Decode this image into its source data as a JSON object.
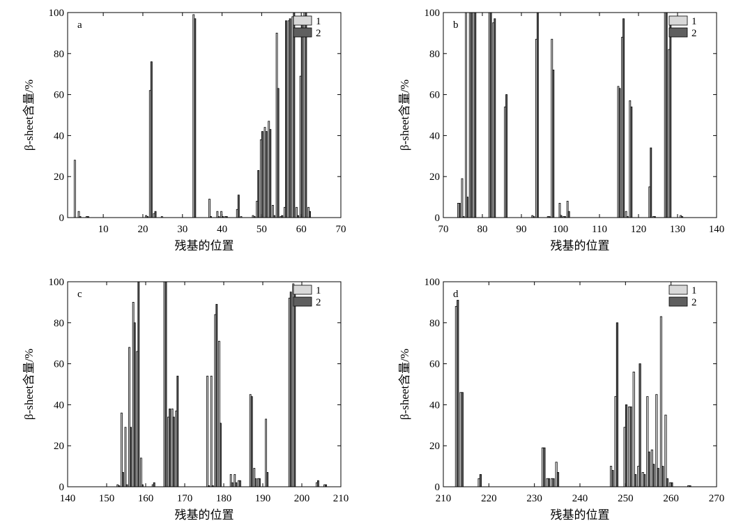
{
  "colors": {
    "series1": "#d9d9d9",
    "series2": "#5f5f5f",
    "axis": "#000000"
  },
  "chart_data": [
    {
      "type": "bar",
      "panel_label": "a",
      "xlabel": "残基的位置",
      "ylabel": "β-sheet含量/%",
      "xlim": [
        1,
        70
      ],
      "ylim": [
        0,
        100
      ],
      "xticks": [
        10,
        20,
        30,
        40,
        50,
        60,
        70
      ],
      "yticks": [
        0,
        20,
        40,
        60,
        80,
        100
      ],
      "legend": {
        "position": "top-right",
        "entries": [
          "1",
          "2"
        ]
      },
      "x": [
        3,
        4,
        6,
        21,
        22,
        23,
        25,
        33,
        37,
        39,
        40,
        41,
        44,
        45,
        48,
        49,
        50,
        51,
        52,
        53,
        54,
        55,
        56,
        57,
        58,
        59,
        60,
        61,
        62
      ],
      "series": [
        {
          "name": "1",
          "values": [
            28,
            3,
            0.5,
            1,
            62,
            2,
            0.5,
            99,
            9,
            3,
            3,
            0.5,
            4,
            0.5,
            1,
            8,
            38,
            44,
            47,
            6,
            90,
            0.5,
            5,
            96,
            98,
            5,
            69,
            100,
            5
          ]
        },
        {
          "name": "2",
          "values": [
            0,
            0.5,
            0.5,
            0.5,
            76,
            3,
            0,
            97,
            0.5,
            0.5,
            0.5,
            0.5,
            11,
            0,
            0.5,
            23,
            42,
            42,
            43,
            1,
            63,
            1,
            96,
            97,
            100,
            1,
            96,
            100,
            3
          ]
        }
      ]
    },
    {
      "type": "bar",
      "panel_label": "b",
      "xlabel": "残基的位置",
      "ylabel": "β-sheet含量/%",
      "xlim": [
        70,
        140
      ],
      "ylim": [
        0,
        100
      ],
      "xticks": [
        70,
        80,
        90,
        100,
        110,
        120,
        130,
        140
      ],
      "yticks": [
        0,
        20,
        40,
        60,
        80,
        100
      ],
      "legend": {
        "position": "top-right",
        "entries": [
          "1",
          "2"
        ]
      },
      "x": [
        74,
        75,
        76,
        77,
        78,
        82,
        83,
        86,
        93,
        94,
        97,
        98,
        100,
        101,
        102,
        115,
        116,
        117,
        118,
        123,
        124,
        127,
        128,
        131
      ],
      "series": [
        {
          "name": "1",
          "values": [
            7,
            19,
            100,
            100,
            100,
            100,
            95,
            54,
            1,
            87,
            0.5,
            87,
            7,
            0.5,
            8,
            64,
            88,
            3,
            57,
            15,
            0.5,
            100,
            82,
            1
          ]
        },
        {
          "name": "2",
          "values": [
            7,
            0.5,
            10,
            100,
            100,
            100,
            97,
            60,
            0.5,
            100,
            0.5,
            72,
            1,
            0.5,
            3,
            63,
            97,
            0.5,
            54,
            34,
            0.5,
            100,
            98,
            0.5
          ]
        }
      ]
    },
    {
      "type": "bar",
      "panel_label": "c",
      "xlabel": "残基的位置",
      "ylabel": "β-sheet含量/%",
      "xlim": [
        140,
        210
      ],
      "ylim": [
        0,
        100
      ],
      "xticks": [
        140,
        150,
        160,
        170,
        180,
        190,
        200,
        210
      ],
      "yticks": [
        0,
        20,
        40,
        60,
        80,
        100
      ],
      "legend": {
        "position": "top-right",
        "entries": [
          "1",
          "2"
        ]
      },
      "x": [
        153,
        154,
        155,
        156,
        157,
        158,
        159,
        162,
        165,
        166,
        167,
        168,
        176,
        177,
        178,
        179,
        182,
        183,
        184,
        187,
        188,
        189,
        191,
        197,
        198,
        204,
        206
      ],
      "series": [
        {
          "name": "1",
          "values": [
            1,
            36,
            29,
            68,
            90,
            66,
            14,
            1,
            100,
            34,
            38,
            37,
            54,
            54,
            84,
            71,
            6,
            6,
            3,
            45,
            9,
            4,
            33,
            92,
            99,
            2,
            1
          ]
        },
        {
          "name": "2",
          "values": [
            0.5,
            7,
            1,
            29,
            80,
            100,
            1,
            2,
            100,
            38,
            34,
            54,
            0.5,
            0.5,
            89,
            31,
            2,
            2,
            3,
            44,
            4,
            4,
            7,
            95,
            97,
            3,
            1
          ]
        }
      ]
    },
    {
      "type": "bar",
      "panel_label": "d",
      "xlabel": "残基的位置",
      "ylabel": "β-sheet含量/%",
      "xlim": [
        210,
        270
      ],
      "ylim": [
        0,
        100
      ],
      "xticks": [
        210,
        220,
        230,
        240,
        250,
        260,
        270
      ],
      "yticks": [
        0,
        20,
        40,
        60,
        80,
        100
      ],
      "legend": {
        "position": "top-right",
        "entries": [
          "1",
          "2"
        ]
      },
      "x": [
        213,
        214,
        218,
        232,
        233,
        234,
        235,
        247,
        248,
        250,
        251,
        252,
        253,
        254,
        255,
        256,
        257,
        258,
        259,
        260,
        264
      ],
      "series": [
        {
          "name": "1",
          "values": [
            88,
            46,
            4,
            19,
            4,
            4,
            12,
            10,
            44,
            29,
            39,
            56,
            10,
            7,
            44,
            18,
            45,
            83,
            35,
            2,
            0.5
          ]
        },
        {
          "name": "2",
          "values": [
            91,
            46,
            6,
            19,
            4,
            4,
            7,
            8,
            80,
            40,
            39,
            6,
            60,
            6,
            17,
            11,
            9,
            10,
            4,
            2,
            0.5
          ]
        }
      ]
    }
  ]
}
